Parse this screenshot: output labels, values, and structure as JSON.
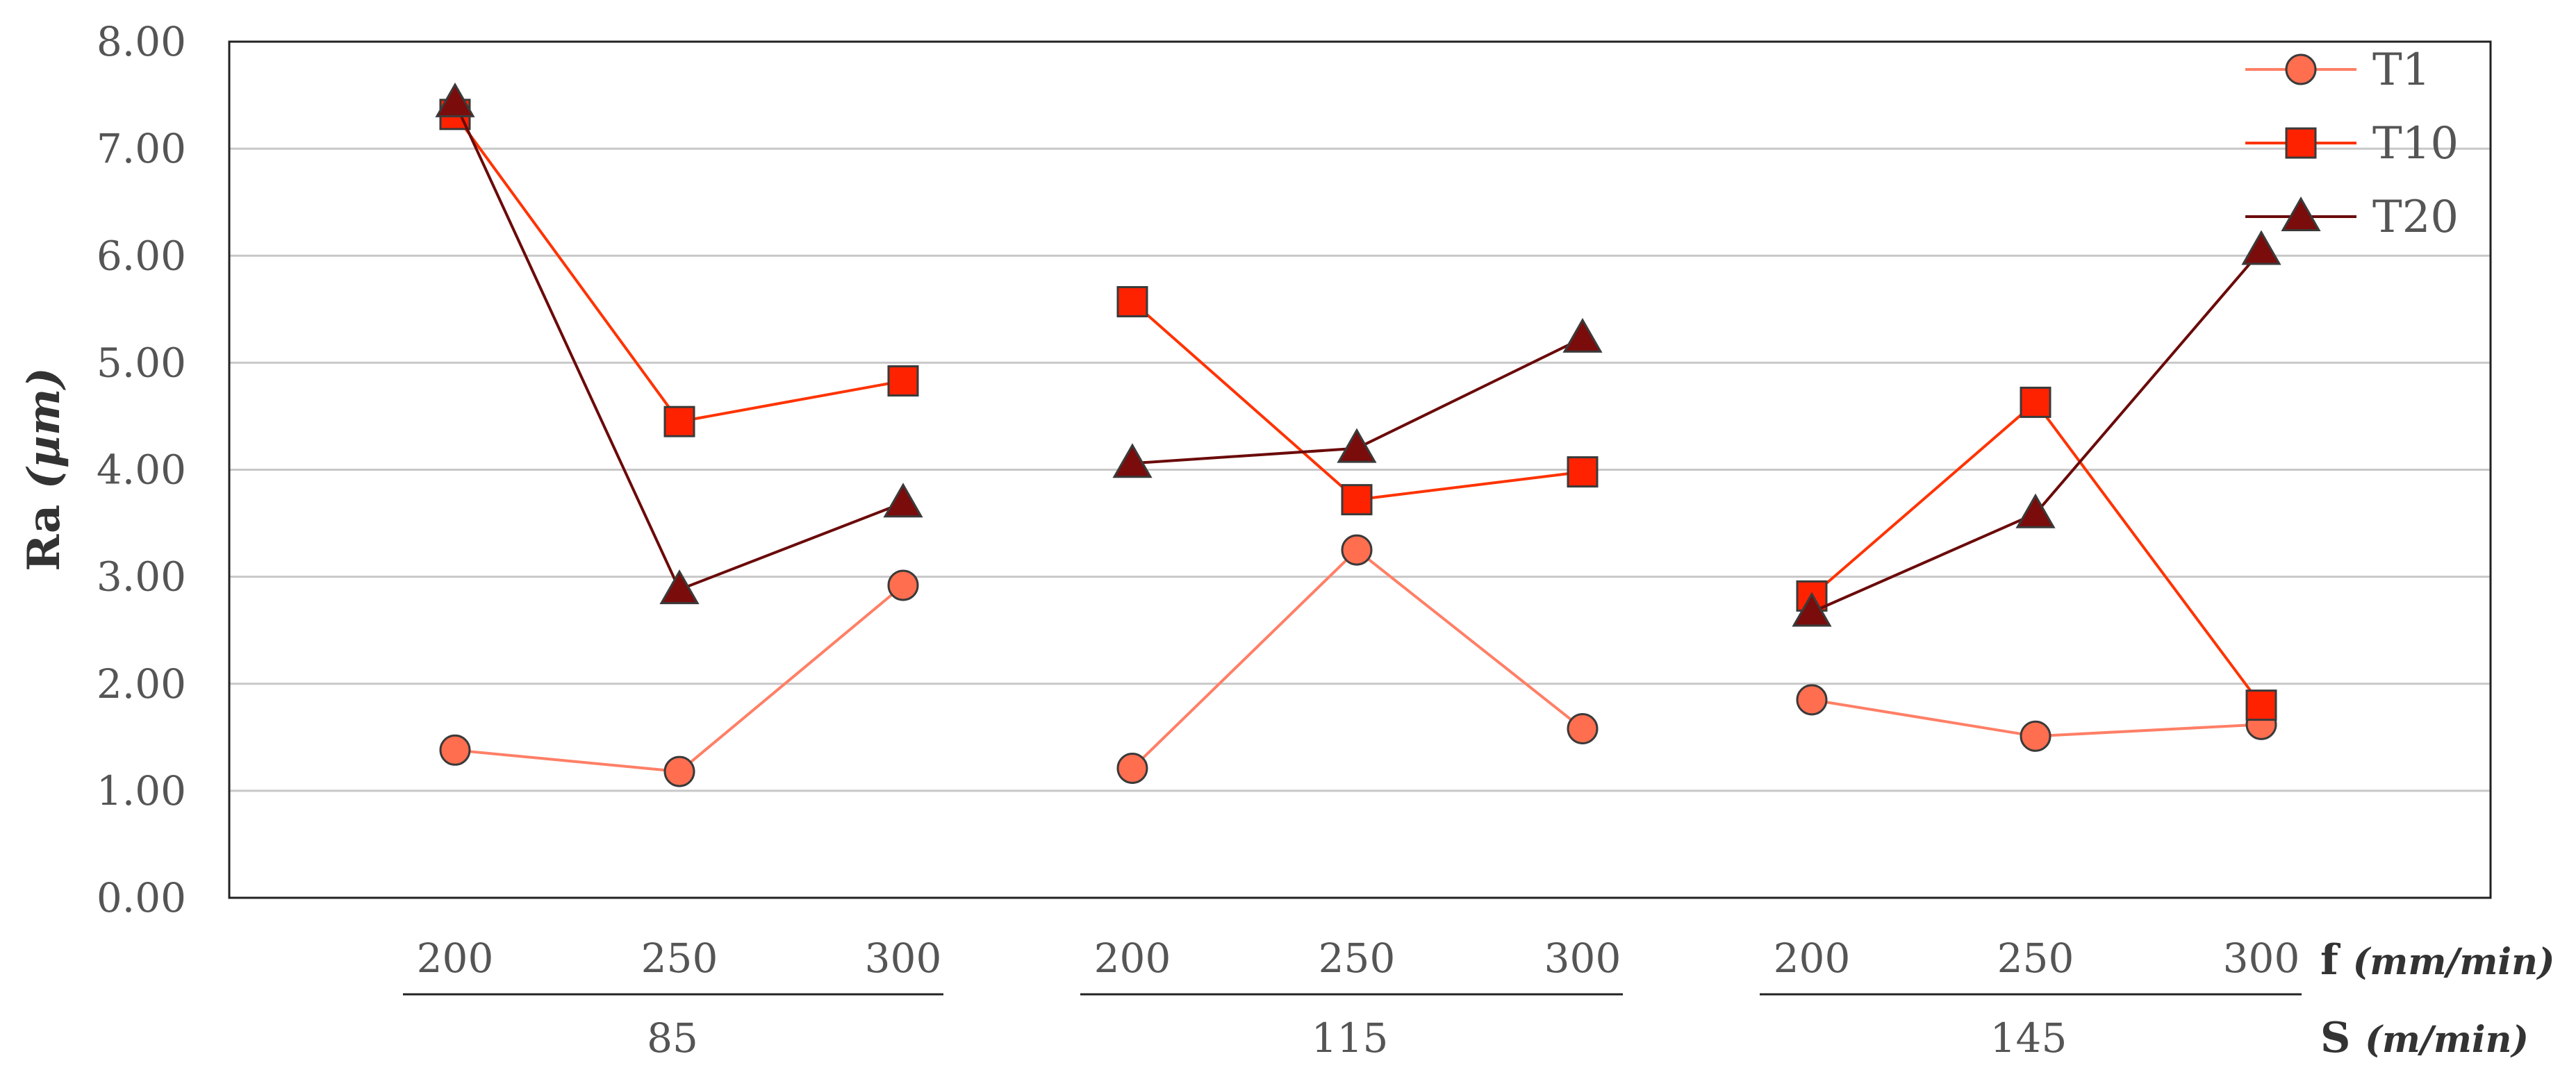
{
  "chart_data": {
    "type": "line",
    "ylabel": "Ra",
    "ylabel_unit": "(µm)",
    "ylim": [
      0,
      8
    ],
    "yticks": [
      "0.00",
      "1.00",
      "2.00",
      "3.00",
      "4.00",
      "5.00",
      "6.00",
      "7.00",
      "8.00"
    ],
    "grid": true,
    "legend": "top-right",
    "x_levels": {
      "f": {
        "name": "f",
        "unit": "(mm/min)"
      },
      "S": {
        "name": "S",
        "unit": "(m/min)"
      }
    },
    "groups": [
      {
        "S": "85",
        "f": [
          "200",
          "250",
          "300"
        ]
      },
      {
        "S": "115",
        "f": [
          "200",
          "250",
          "300"
        ]
      },
      {
        "S": "145",
        "f": [
          "200",
          "250",
          "300"
        ]
      }
    ],
    "series": [
      {
        "name": "T1",
        "marker": "circle",
        "color": "#ff6e4f",
        "line_color": "#ff7f66",
        "values": [
          [
            1.38,
            1.18,
            2.92
          ],
          [
            1.21,
            3.25,
            1.58
          ],
          [
            1.85,
            1.51,
            1.62
          ]
        ]
      },
      {
        "name": "T10",
        "marker": "square",
        "color": "#ff2200",
        "line_color": "#ff3300",
        "values": [
          [
            7.32,
            4.45,
            4.83
          ],
          [
            5.57,
            3.72,
            3.98
          ],
          [
            2.82,
            4.63,
            1.8
          ]
        ]
      },
      {
        "name": "T20",
        "marker": "triangle",
        "color": "#7a0c0c",
        "line_color": "#6b0a0a",
        "values": [
          [
            7.43,
            2.88,
            3.69
          ],
          [
            4.06,
            4.2,
            5.23
          ],
          [
            2.67,
            3.59,
            6.05
          ]
        ]
      }
    ]
  }
}
